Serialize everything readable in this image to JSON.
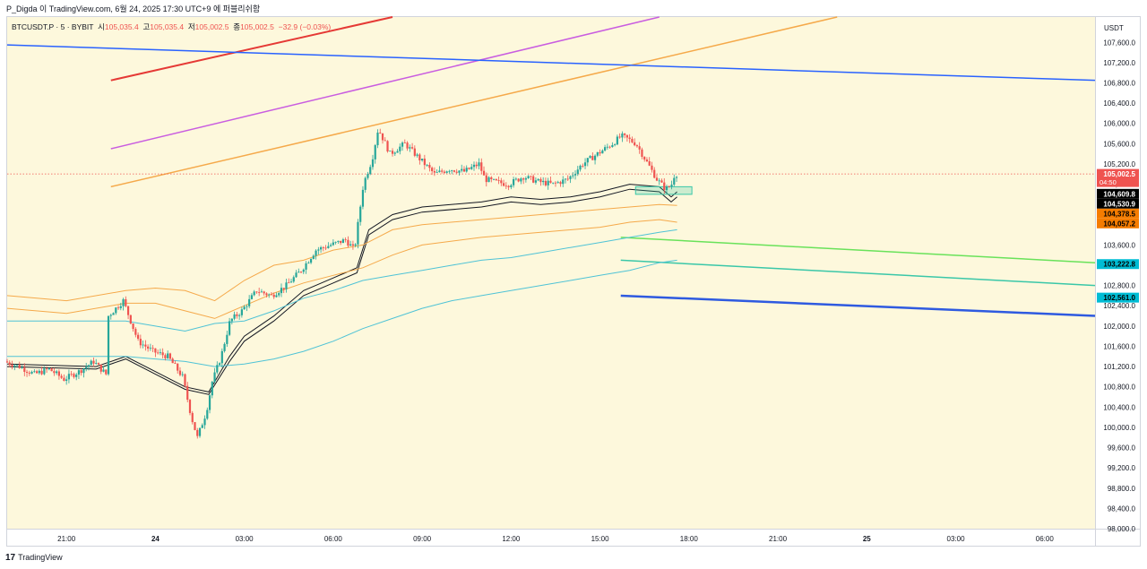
{
  "header": {
    "credit": "P_Digda 이 TradingView.com, 6월 24, 2025 17:30 UTC+9 에 퍼블리쉬함"
  },
  "legend": {
    "symbol": "BTCUSDT.P · 5 · BYBIT",
    "open_label": "시",
    "open_value": "105,035.4",
    "high_label": "고",
    "high_value": "105,035.4",
    "low_label": "저",
    "low_value": "105,002.5",
    "close_label": "종",
    "close_value": "105,002.5",
    "change": "−32.9 (−0.03%)"
  },
  "footer": {
    "logo": "17",
    "brand": "TradingView"
  },
  "colors": {
    "background": "#fdf8dc",
    "up": "#26a69a",
    "down": "#ef5350",
    "axis_text": "#131722"
  },
  "chart_data": {
    "type": "candlestick",
    "symbol": "BTCUSDT.P",
    "interval": "5",
    "exchange": "BYBIT",
    "currency": "USDT",
    "ylim": [
      98000,
      108100
    ],
    "y_ticks": [
      98000,
      98400,
      98800,
      99200,
      99600,
      100000,
      100400,
      100800,
      101200,
      101600,
      102000,
      102400,
      102800,
      103200,
      103600,
      104000,
      104400,
      104800,
      105200,
      105600,
      106000,
      106400,
      106800,
      107200,
      107600
    ],
    "y_tick_labels": [
      "98,000.0",
      "98,400.0",
      "98,800.0",
      "99,200.0",
      "99,600.0",
      "100,000.0",
      "100,400.0",
      "100,800.0",
      "101,200.0",
      "101,600.0",
      "102,000.0",
      "102,400.0",
      "102,800.0",
      "103,200.0",
      "103,600.0",
      "104,000.0",
      "104,400.0",
      "104,800.0",
      "105,200.0",
      "105,600.0",
      "106,000.0",
      "106,400.0",
      "106,800.0",
      "107,200.0",
      "107,600.0"
    ],
    "x_unit": "hours since 23 Jun 19:00 (UTC+9)",
    "xlim": [
      0,
      36.7
    ],
    "x_ticks": [
      {
        "x": 2,
        "label": "21:00",
        "bold": false
      },
      {
        "x": 5,
        "label": "24",
        "bold": true
      },
      {
        "x": 8,
        "label": "03:00",
        "bold": false
      },
      {
        "x": 11,
        "label": "06:00",
        "bold": false
      },
      {
        "x": 14,
        "label": "09:00",
        "bold": false
      },
      {
        "x": 17,
        "label": "12:00",
        "bold": false
      },
      {
        "x": 20,
        "label": "15:00",
        "bold": false
      },
      {
        "x": 23,
        "label": "18:00",
        "bold": false
      },
      {
        "x": 26,
        "label": "21:00",
        "bold": false
      },
      {
        "x": 29,
        "label": "25",
        "bold": true
      },
      {
        "x": 32,
        "label": "03:00",
        "bold": false
      },
      {
        "x": 35,
        "label": "06:00",
        "bold": false
      }
    ],
    "price_path": [
      [
        0,
        101300
      ],
      [
        0.5,
        101200
      ],
      [
        1,
        101050
      ],
      [
        1.5,
        101150
      ],
      [
        2,
        100950
      ],
      [
        2.5,
        101100
      ],
      [
        3,
        101300
      ],
      [
        3.5,
        101000
      ],
      [
        3.5,
        102200
      ],
      [
        4,
        102500
      ],
      [
        4.5,
        101700
      ],
      [
        5,
        101500
      ],
      [
        5.5,
        101400
      ],
      [
        6,
        101000
      ],
      [
        6.3,
        100200
      ],
      [
        6.5,
        99800
      ],
      [
        6.8,
        100300
      ],
      [
        7,
        100900
      ],
      [
        7.3,
        101400
      ],
      [
        7.6,
        102100
      ],
      [
        8,
        102300
      ],
      [
        8.5,
        102700
      ],
      [
        9,
        102600
      ],
      [
        9.5,
        102800
      ],
      [
        10,
        103100
      ],
      [
        10.5,
        103500
      ],
      [
        11,
        103600
      ],
      [
        11.5,
        103700
      ],
      [
        11.8,
        103500
      ],
      [
        12.1,
        104800
      ],
      [
        12.4,
        105300
      ],
      [
        12.6,
        105900
      ],
      [
        13,
        105400
      ],
      [
        13.5,
        105600
      ],
      [
        14,
        105300
      ],
      [
        14.5,
        105000
      ],
      [
        15,
        105100
      ],
      [
        15.5,
        105050
      ],
      [
        16,
        105200
      ],
      [
        16.2,
        104900
      ],
      [
        16.5,
        104850
      ],
      [
        17,
        104800
      ],
      [
        17.5,
        104950
      ],
      [
        18,
        104850
      ],
      [
        18.5,
        104800
      ],
      [
        19,
        104900
      ],
      [
        19.5,
        105200
      ],
      [
        20,
        105400
      ],
      [
        20.5,
        105600
      ],
      [
        20.8,
        105750
      ],
      [
        21,
        105700
      ],
      [
        21.3,
        105600
      ],
      [
        21.7,
        105200
      ],
      [
        22,
        104900
      ],
      [
        22.3,
        104700
      ],
      [
        22.5,
        104800
      ],
      [
        22.6,
        105000
      ]
    ],
    "moving_averages": [
      {
        "name": "MA band upper",
        "color": "#131722",
        "points": [
          [
            0,
            101250
          ],
          [
            3,
            101200
          ],
          [
            4,
            101400
          ],
          [
            5,
            101100
          ],
          [
            6,
            100800
          ],
          [
            6.8,
            100700
          ],
          [
            7.5,
            101400
          ],
          [
            8,
            101800
          ],
          [
            9,
            102200
          ],
          [
            10,
            102700
          ],
          [
            11,
            102950
          ],
          [
            11.8,
            103150
          ],
          [
            12.2,
            103900
          ],
          [
            13,
            104200
          ],
          [
            14,
            104350
          ],
          [
            16,
            104450
          ],
          [
            17,
            104550
          ],
          [
            18,
            104500
          ],
          [
            19,
            104550
          ],
          [
            20,
            104650
          ],
          [
            21,
            104800
          ],
          [
            22,
            104750
          ],
          [
            22.4,
            104550
          ],
          [
            22.6,
            104650
          ]
        ]
      },
      {
        "name": "MA band lower",
        "color": "#131722",
        "points": [
          [
            0,
            101200
          ],
          [
            3,
            101150
          ],
          [
            4,
            101350
          ],
          [
            5,
            101050
          ],
          [
            6,
            100750
          ],
          [
            6.8,
            100650
          ],
          [
            7.5,
            101300
          ],
          [
            8,
            101700
          ],
          [
            9,
            102100
          ],
          [
            10,
            102600
          ],
          [
            11,
            102850
          ],
          [
            11.8,
            103050
          ],
          [
            12.2,
            103800
          ],
          [
            13,
            104100
          ],
          [
            14,
            104250
          ],
          [
            16,
            104350
          ],
          [
            17,
            104450
          ],
          [
            18,
            104400
          ],
          [
            19,
            104450
          ],
          [
            20,
            104550
          ],
          [
            21,
            104700
          ],
          [
            22,
            104650
          ],
          [
            22.4,
            104450
          ],
          [
            22.6,
            104550
          ]
        ]
      },
      {
        "name": "Band orange 1",
        "color": "#f5a94a",
        "points": [
          [
            0,
            102600
          ],
          [
            2,
            102500
          ],
          [
            4,
            102700
          ],
          [
            5,
            102750
          ],
          [
            6,
            102700
          ],
          [
            7,
            102500
          ],
          [
            8,
            102900
          ],
          [
            9,
            103200
          ],
          [
            10,
            103300
          ],
          [
            11,
            103500
          ],
          [
            12,
            103600
          ],
          [
            13,
            103900
          ],
          [
            14,
            104000
          ],
          [
            16,
            104100
          ],
          [
            18,
            104200
          ],
          [
            20,
            104300
          ],
          [
            21,
            104350
          ],
          [
            22,
            104400
          ],
          [
            22.6,
            104380
          ]
        ]
      },
      {
        "name": "Band orange 2",
        "color": "#f5a94a",
        "points": [
          [
            0,
            102350
          ],
          [
            2,
            102250
          ],
          [
            4,
            102450
          ],
          [
            5,
            102450
          ],
          [
            6,
            102300
          ],
          [
            7,
            102150
          ],
          [
            8,
            102400
          ],
          [
            9,
            102650
          ],
          [
            10,
            102850
          ],
          [
            11,
            103000
          ],
          [
            12,
            103150
          ],
          [
            13,
            103400
          ],
          [
            14,
            103600
          ],
          [
            16,
            103750
          ],
          [
            18,
            103850
          ],
          [
            20,
            103950
          ],
          [
            21,
            104050
          ],
          [
            22,
            104100
          ],
          [
            22.6,
            104050
          ]
        ]
      },
      {
        "name": "Band cyan upper",
        "color": "#4fc3d6",
        "points": [
          [
            0,
            102100
          ],
          [
            4,
            102100
          ],
          [
            5,
            102000
          ],
          [
            6,
            101900
          ],
          [
            7,
            102050
          ],
          [
            8,
            102100
          ],
          [
            9,
            102300
          ],
          [
            10,
            102550
          ],
          [
            11,
            102700
          ],
          [
            12,
            102900
          ],
          [
            13,
            103000
          ],
          [
            14,
            103100
          ],
          [
            15,
            103200
          ],
          [
            16,
            103300
          ],
          [
            17,
            103350
          ],
          [
            18,
            103450
          ],
          [
            19,
            103550
          ],
          [
            20,
            103650
          ],
          [
            21,
            103750
          ],
          [
            22,
            103850
          ],
          [
            22.6,
            103900
          ]
        ]
      },
      {
        "name": "Band cyan lower",
        "color": "#4fc3d6",
        "points": [
          [
            0,
            101400
          ],
          [
            4,
            101400
          ],
          [
            5,
            101350
          ],
          [
            6,
            101300
          ],
          [
            7,
            101200
          ],
          [
            8,
            101250
          ],
          [
            9,
            101350
          ],
          [
            10,
            101500
          ],
          [
            11,
            101700
          ],
          [
            12,
            101950
          ],
          [
            13,
            102150
          ],
          [
            14,
            102350
          ],
          [
            15,
            102500
          ],
          [
            16,
            102600
          ],
          [
            17,
            102700
          ],
          [
            18,
            102800
          ],
          [
            19,
            102900
          ],
          [
            20,
            103000
          ],
          [
            21,
            103100
          ],
          [
            22,
            103250
          ],
          [
            22.6,
            103300
          ]
        ]
      }
    ],
    "trend_lines": [
      {
        "name": "red",
        "color": "#e53935",
        "from": [
          3.5,
          106850
        ],
        "to": [
          13,
          108100
        ],
        "width": 2
      },
      {
        "name": "violet",
        "color": "#c95de0",
        "from": [
          3.5,
          105500
        ],
        "to": [
          22,
          108100
        ],
        "width": 1.5
      },
      {
        "name": "orange",
        "color": "#f5a94a",
        "from": [
          3.5,
          104750
        ],
        "to": [
          28,
          108100
        ],
        "width": 1.5
      },
      {
        "name": "blue top",
        "color": "#2962ff",
        "from": [
          0,
          107550
        ],
        "to": [
          36.7,
          106850
        ],
        "width": 1.5
      },
      {
        "name": "green",
        "color": "#69e25a",
        "from": [
          20.7,
          103750
        ],
        "to": [
          36.7,
          103250
        ],
        "width": 1.5
      },
      {
        "name": "teal",
        "color": "#3ac7a8",
        "from": [
          20.7,
          103300
        ],
        "to": [
          36.7,
          102800
        ],
        "width": 1.5
      },
      {
        "name": "blue bottom",
        "color": "#2e5ae0",
        "from": [
          20.7,
          102600
        ],
        "to": [
          36.7,
          102200
        ],
        "width": 2.5
      }
    ],
    "box": {
      "x0": 21.2,
      "x1": 23.1,
      "y0": 104600,
      "y1": 104750,
      "color": "#3ac7a8"
    },
    "reference_line": {
      "value": 105002.5,
      "color": "#ef5350"
    },
    "price_labels": [
      {
        "value": 105002.5,
        "text": "105,002.5",
        "sub": "04:50",
        "bg": "#ef5350",
        "fg": "#ffffff"
      },
      {
        "value": 104609.8,
        "text": "104,609.8",
        "bg": "#000000",
        "fg": "#ffffff"
      },
      {
        "value": 104530.9,
        "text": "104,530.9",
        "bg": "#000000",
        "fg": "#ffffff"
      },
      {
        "value": 104378.5,
        "text": "104,378.5",
        "bg": "#f57c00",
        "fg": "#000000"
      },
      {
        "value": 104057.2,
        "text": "104,057.2",
        "bg": "#f57c00",
        "fg": "#000000"
      },
      {
        "value": 103222.8,
        "text": "103,222.8",
        "bg": "#00bcd4",
        "fg": "#000000"
      },
      {
        "value": 102561.0,
        "text": "102,561.0",
        "bg": "#00bcd4",
        "fg": "#000000"
      }
    ]
  }
}
